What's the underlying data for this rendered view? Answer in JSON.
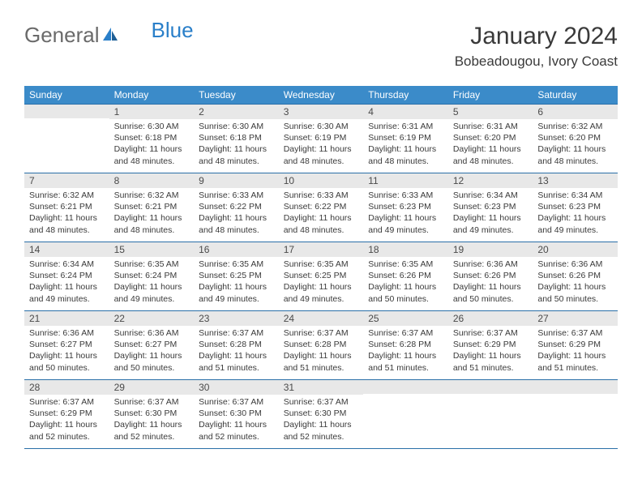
{
  "logo": {
    "part1": "General",
    "part2": "Blue"
  },
  "title": "January 2024",
  "subtitle": "Bobeadougou, Ivory Coast",
  "colors": {
    "header_bg": "#3b8bc9",
    "header_text": "#ffffff",
    "daynum_bg": "#e8e8e8",
    "border": "#2a6fa8",
    "text": "#3a3a3a",
    "logo_gray": "#6a6a6a",
    "logo_blue": "#2a7fc9"
  },
  "weekdays": [
    "Sunday",
    "Monday",
    "Tuesday",
    "Wednesday",
    "Thursday",
    "Friday",
    "Saturday"
  ],
  "weeks": [
    [
      null,
      {
        "n": "1",
        "sr": "6:30 AM",
        "ss": "6:18 PM",
        "dl": "11 hours and 48 minutes."
      },
      {
        "n": "2",
        "sr": "6:30 AM",
        "ss": "6:18 PM",
        "dl": "11 hours and 48 minutes."
      },
      {
        "n": "3",
        "sr": "6:30 AM",
        "ss": "6:19 PM",
        "dl": "11 hours and 48 minutes."
      },
      {
        "n": "4",
        "sr": "6:31 AM",
        "ss": "6:19 PM",
        "dl": "11 hours and 48 minutes."
      },
      {
        "n": "5",
        "sr": "6:31 AM",
        "ss": "6:20 PM",
        "dl": "11 hours and 48 minutes."
      },
      {
        "n": "6",
        "sr": "6:32 AM",
        "ss": "6:20 PM",
        "dl": "11 hours and 48 minutes."
      }
    ],
    [
      {
        "n": "7",
        "sr": "6:32 AM",
        "ss": "6:21 PM",
        "dl": "11 hours and 48 minutes."
      },
      {
        "n": "8",
        "sr": "6:32 AM",
        "ss": "6:21 PM",
        "dl": "11 hours and 48 minutes."
      },
      {
        "n": "9",
        "sr": "6:33 AM",
        "ss": "6:22 PM",
        "dl": "11 hours and 48 minutes."
      },
      {
        "n": "10",
        "sr": "6:33 AM",
        "ss": "6:22 PM",
        "dl": "11 hours and 48 minutes."
      },
      {
        "n": "11",
        "sr": "6:33 AM",
        "ss": "6:23 PM",
        "dl": "11 hours and 49 minutes."
      },
      {
        "n": "12",
        "sr": "6:34 AM",
        "ss": "6:23 PM",
        "dl": "11 hours and 49 minutes."
      },
      {
        "n": "13",
        "sr": "6:34 AM",
        "ss": "6:23 PM",
        "dl": "11 hours and 49 minutes."
      }
    ],
    [
      {
        "n": "14",
        "sr": "6:34 AM",
        "ss": "6:24 PM",
        "dl": "11 hours and 49 minutes."
      },
      {
        "n": "15",
        "sr": "6:35 AM",
        "ss": "6:24 PM",
        "dl": "11 hours and 49 minutes."
      },
      {
        "n": "16",
        "sr": "6:35 AM",
        "ss": "6:25 PM",
        "dl": "11 hours and 49 minutes."
      },
      {
        "n": "17",
        "sr": "6:35 AM",
        "ss": "6:25 PM",
        "dl": "11 hours and 49 minutes."
      },
      {
        "n": "18",
        "sr": "6:35 AM",
        "ss": "6:26 PM",
        "dl": "11 hours and 50 minutes."
      },
      {
        "n": "19",
        "sr": "6:36 AM",
        "ss": "6:26 PM",
        "dl": "11 hours and 50 minutes."
      },
      {
        "n": "20",
        "sr": "6:36 AM",
        "ss": "6:26 PM",
        "dl": "11 hours and 50 minutes."
      }
    ],
    [
      {
        "n": "21",
        "sr": "6:36 AM",
        "ss": "6:27 PM",
        "dl": "11 hours and 50 minutes."
      },
      {
        "n": "22",
        "sr": "6:36 AM",
        "ss": "6:27 PM",
        "dl": "11 hours and 50 minutes."
      },
      {
        "n": "23",
        "sr": "6:37 AM",
        "ss": "6:28 PM",
        "dl": "11 hours and 51 minutes."
      },
      {
        "n": "24",
        "sr": "6:37 AM",
        "ss": "6:28 PM",
        "dl": "11 hours and 51 minutes."
      },
      {
        "n": "25",
        "sr": "6:37 AM",
        "ss": "6:28 PM",
        "dl": "11 hours and 51 minutes."
      },
      {
        "n": "26",
        "sr": "6:37 AM",
        "ss": "6:29 PM",
        "dl": "11 hours and 51 minutes."
      },
      {
        "n": "27",
        "sr": "6:37 AM",
        "ss": "6:29 PM",
        "dl": "11 hours and 51 minutes."
      }
    ],
    [
      {
        "n": "28",
        "sr": "6:37 AM",
        "ss": "6:29 PM",
        "dl": "11 hours and 52 minutes."
      },
      {
        "n": "29",
        "sr": "6:37 AM",
        "ss": "6:30 PM",
        "dl": "11 hours and 52 minutes."
      },
      {
        "n": "30",
        "sr": "6:37 AM",
        "ss": "6:30 PM",
        "dl": "11 hours and 52 minutes."
      },
      {
        "n": "31",
        "sr": "6:37 AM",
        "ss": "6:30 PM",
        "dl": "11 hours and 52 minutes."
      },
      null,
      null,
      null
    ]
  ],
  "labels": {
    "sunrise": "Sunrise:",
    "sunset": "Sunset:",
    "daylight": "Daylight:"
  }
}
